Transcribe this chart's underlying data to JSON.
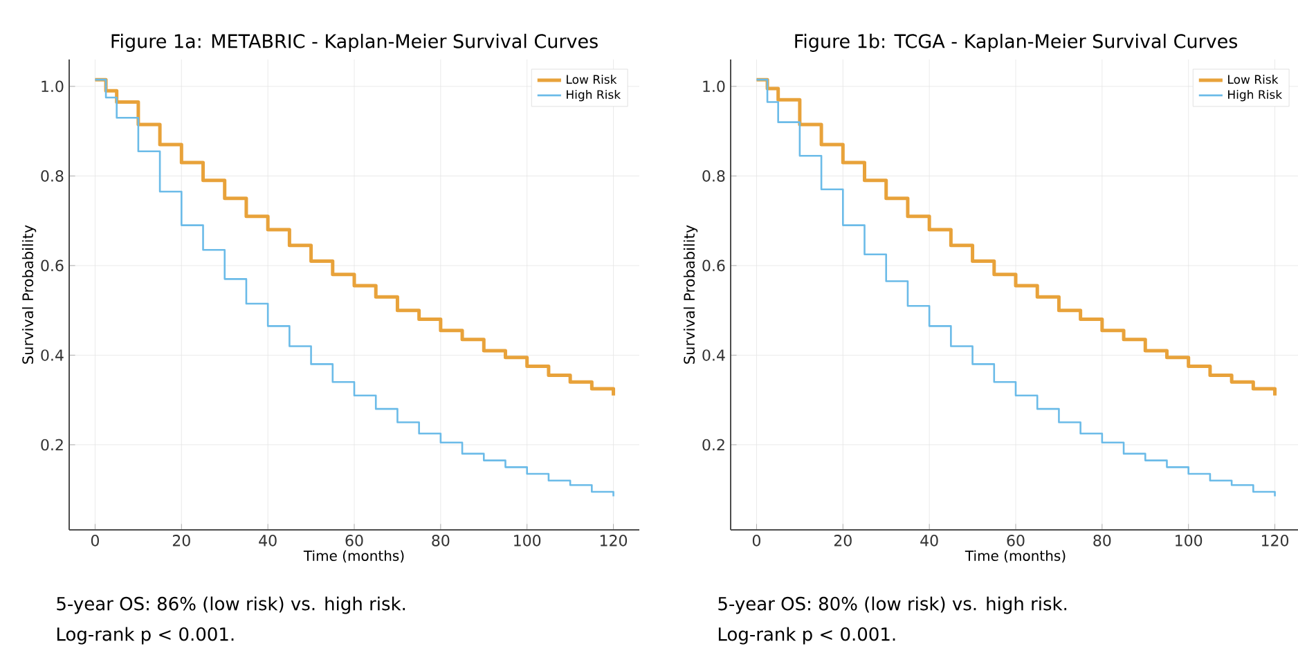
{
  "chart_data": [
    {
      "type": "step",
      "title": "Figure 1a: METABRIC - Kaplan-Meier Survival Curves",
      "xlabel": "Time (months)",
      "ylabel": "Survival Probability",
      "xlim": [
        -6,
        126
      ],
      "ylim": [
        0.01,
        1.06
      ],
      "xticks": [
        0,
        20,
        40,
        60,
        80,
        100,
        120
      ],
      "yticks": [
        0.2,
        0.4,
        0.6,
        0.8,
        {
          "value": 1.0,
          "label": "1.0"
        }
      ],
      "grid": true,
      "legend": "top right",
      "x": [
        0,
        2.5,
        5,
        10,
        15,
        20,
        25,
        30,
        35,
        40,
        45,
        50,
        55,
        60,
        65,
        70,
        75,
        80,
        85,
        90,
        95,
        100,
        105,
        110,
        115,
        120
      ],
      "series": [
        {
          "name": "Low Risk",
          "color": "#e8a23a",
          "values": [
            1.015,
            0.99,
            0.965,
            0.915,
            0.87,
            0.83,
            0.79,
            0.75,
            0.71,
            0.68,
            0.645,
            0.61,
            0.58,
            0.555,
            0.53,
            0.5,
            0.48,
            0.455,
            0.435,
            0.41,
            0.395,
            0.375,
            0.355,
            0.34,
            0.325,
            0.31
          ]
        },
        {
          "name": "High Risk",
          "color": "#6bbbe8",
          "values": [
            1.015,
            0.975,
            0.93,
            0.855,
            0.765,
            0.69,
            0.635,
            0.57,
            0.515,
            0.465,
            0.42,
            0.38,
            0.34,
            0.31,
            0.28,
            0.25,
            0.225,
            0.205,
            0.18,
            0.165,
            0.15,
            0.135,
            0.12,
            0.11,
            0.095,
            0.085
          ]
        }
      ],
      "annotations": [
        "5-year OS: 86% (low risk) vs. high risk.",
        "Log-rank p < 0.001."
      ]
    },
    {
      "type": "step",
      "title": "Figure 1b: TCGA - Kaplan-Meier Survival Curves",
      "xlabel": "Time (months)",
      "ylabel": "Survival Probability",
      "xlim": [
        -6,
        126
      ],
      "ylim": [
        0.01,
        1.06
      ],
      "xticks": [
        0,
        20,
        40,
        60,
        80,
        100,
        120
      ],
      "yticks": [
        0.2,
        0.4,
        0.6,
        0.8,
        {
          "value": 1.0,
          "label": "1.0"
        }
      ],
      "grid": true,
      "legend": "top right",
      "x": [
        0,
        2.5,
        5,
        10,
        15,
        20,
        25,
        30,
        35,
        40,
        45,
        50,
        55,
        60,
        65,
        70,
        75,
        80,
        85,
        90,
        95,
        100,
        105,
        110,
        115,
        120
      ],
      "series": [
        {
          "name": "Low Risk",
          "color": "#e8a23a",
          "values": [
            1.015,
            0.995,
            0.97,
            0.915,
            0.87,
            0.83,
            0.79,
            0.75,
            0.71,
            0.68,
            0.645,
            0.61,
            0.58,
            0.555,
            0.53,
            0.5,
            0.48,
            0.455,
            0.435,
            0.41,
            0.395,
            0.375,
            0.355,
            0.34,
            0.325,
            0.31
          ]
        },
        {
          "name": "High Risk",
          "color": "#6bbbe8",
          "values": [
            1.015,
            0.965,
            0.92,
            0.845,
            0.77,
            0.69,
            0.625,
            0.565,
            0.51,
            0.465,
            0.42,
            0.38,
            0.34,
            0.31,
            0.28,
            0.25,
            0.225,
            0.205,
            0.18,
            0.165,
            0.15,
            0.135,
            0.12,
            0.11,
            0.095,
            0.085
          ]
        }
      ],
      "annotations": [
        "5-year OS: 80% (low risk) vs. high risk.",
        "Log-rank p < 0.001."
      ]
    }
  ]
}
